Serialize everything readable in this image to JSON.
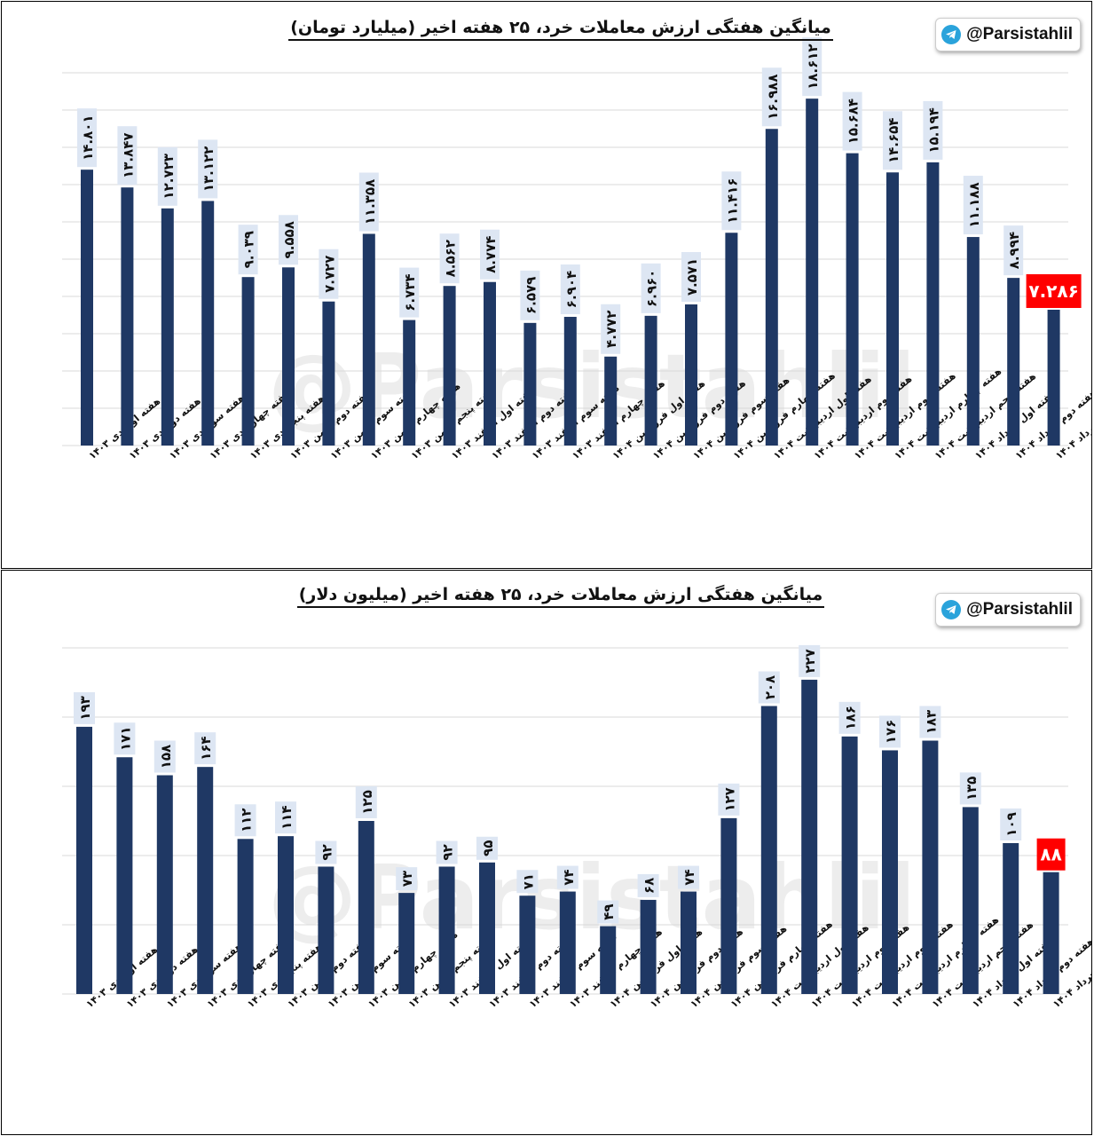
{
  "handle": "@Parsistahlil",
  "icons": {
    "telegram": "telegram-icon"
  },
  "colors": {
    "bar": "#1f3864",
    "highlight": "#ff0000",
    "label_bg": "#dde6f3",
    "grid": "#d9d9d9"
  },
  "categories": [
    "هفته اول دی ۱۴۰۳",
    "هفته دوم دی ۱۴۰۳",
    "هفته سوم دی ۱۴۰۳",
    "هفته چهارم دی ۱۴۰۳",
    "هفته پنجم دی ۱۴۰۳",
    "هفته دوم بهمن ۱۴۰۳",
    "هفته سوم بهمن ۱۴۰۳",
    "هفته چهارم بهمن ۱۴۰۳",
    "هفته پنجم بهمن ۱۴۰۳",
    "هفته اول اسفند ۱۴۰۳",
    "هفته دوم اسفند ۱۴۰۳",
    "هفته سوم اسفند ۱۴۰۳",
    "هفته چهارم اسفند ۱۴۰۳",
    "هفته اول فروردین ۱۴۰۴",
    "هفته دوم فروردین ۱۴۰۴",
    "هفته سوم فروردین ۱۴۰۴",
    "هفته چهارم فروردین ۱۴۰۴",
    "هفته اول اردیبهشت ۱۴۰۴",
    "هفته دوم اردیبهشت ۱۴۰۴",
    "هفته سوم اردیبهشت ۱۴۰۴",
    "هفته چهارم اردیبهشت ۱۴۰۴",
    "هفته پنجم اردیبهشت ۱۴۰۴",
    "هفته اول خرداد ۱۴۰۴",
    "هفته دوم خرداد ۱۴۰۴",
    "هفته سوم خرداد ۱۴۰۴"
  ],
  "chart_data": [
    {
      "type": "bar",
      "title": "میانگین هفتگی ارزش معاملات خرد، ۲۵ هفته اخیر (میلیارد تومان)",
      "values": [
        14801,
        13847,
        12723,
        13122,
        9039,
        9558,
        7727,
        11358,
        6734,
        8562,
        8774,
        6579,
        6904,
        4772,
        6960,
        7571,
        11416,
        16988,
        18612,
        15684,
        14654,
        15194,
        11188,
        8994,
        7286
      ],
      "labels": [
        "۱۴.۸۰۱",
        "۱۳.۸۴۷",
        "۱۲.۷۲۳",
        "۱۳.۱۲۲",
        "۹.۰۳۹",
        "۹.۵۵۸",
        "۷.۷۲۷",
        "۱۱.۳۵۸",
        "۶.۷۳۴",
        "۸.۵۶۲",
        "۸.۷۷۴",
        "۶.۵۷۹",
        "۶.۹۰۴",
        "۴.۷۷۲",
        "۶.۹۶۰",
        "۷.۵۷۱",
        "۱۱.۴۱۶",
        "۱۶.۹۸۸",
        "۱۸.۶۱۲",
        "۱۵.۶۸۴",
        "۱۴.۶۵۴",
        "۱۵.۱۹۴",
        "۱۱.۱۸۸",
        "۸.۹۹۴",
        "۷.۲۸۶"
      ],
      "highlight_index": 24,
      "ylim": [
        0,
        20000
      ],
      "grid": true
    },
    {
      "type": "bar",
      "title": "میانگین هفتگی ارزش معاملات خرد، ۲۵ هفته اخیر (میلیون دلار)",
      "values": [
        193,
        171,
        158,
        164,
        112,
        114,
        92,
        125,
        73,
        92,
        95,
        71,
        74,
        49,
        68,
        74,
        127,
        208,
        227,
        186,
        176,
        183,
        135,
        109,
        88
      ],
      "labels": [
        "۱۹۳",
        "۱۷۱",
        "۱۵۸",
        "۱۶۴",
        "۱۱۲",
        "۱۱۴",
        "۹۲",
        "۱۲۵",
        "۷۳",
        "۹۲",
        "۹۵",
        "۷۱",
        "۷۴",
        "۴۹",
        "۶۸",
        "۷۴",
        "۱۲۷",
        "۲۰۸",
        "۲۲۷",
        "۱۸۶",
        "۱۷۶",
        "۱۸۳",
        "۱۳۵",
        "۱۰۹",
        "۸۸"
      ],
      "highlight_index": 24,
      "ylim": [
        0,
        250
      ],
      "grid": true
    }
  ]
}
